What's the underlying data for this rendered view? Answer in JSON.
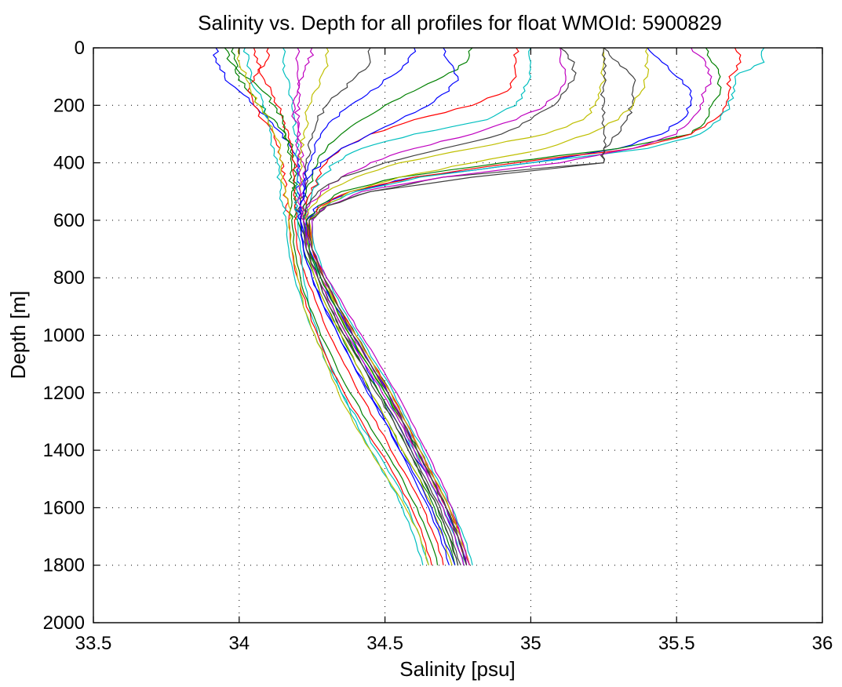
{
  "chart_data": {
    "type": "line",
    "title": "Salinity vs. Depth for all profiles for float WMOId: 5900829",
    "xlabel": "Salinity [psu]",
    "ylabel": "Depth [m]",
    "xlim": [
      33.5,
      36
    ],
    "ylim": [
      0,
      2000
    ],
    "y_reversed": true,
    "xticks": [
      "33.5",
      "34",
      "34.5",
      "35",
      "35.5",
      "36"
    ],
    "yticks": [
      "0",
      "200",
      "400",
      "600",
      "800",
      "1000",
      "1200",
      "1400",
      "1600",
      "1800",
      "2000"
    ],
    "grid": true,
    "legend": "none",
    "depth_levels": [
      0,
      50,
      100,
      150,
      200,
      250,
      300,
      350,
      400,
      450,
      500,
      550,
      600,
      700,
      800,
      900,
      1000,
      1100,
      1200,
      1300,
      1400,
      1500,
      1600,
      1700,
      1800
    ],
    "colors": [
      "#0000ff",
      "#008000",
      "#ff0000",
      "#00bfbf",
      "#bf00bf",
      "#bfbf00",
      "#404040"
    ],
    "series": [
      {
        "salinity": [
          33.92,
          33.92,
          33.95,
          34.0,
          34.05,
          34.1,
          34.15,
          34.18,
          34.2,
          34.2,
          34.2,
          34.2,
          34.21,
          34.24,
          34.28,
          34.33,
          34.38,
          34.43,
          34.48,
          34.54,
          34.59,
          34.65,
          34.7,
          34.74,
          34.77
        ]
      },
      {
        "salinity": [
          33.98,
          33.99,
          34.0,
          34.03,
          34.07,
          34.12,
          34.16,
          34.18,
          34.19,
          34.19,
          34.19,
          34.19,
          34.2,
          34.22,
          34.26,
          34.3,
          34.35,
          34.4,
          34.45,
          34.51,
          34.56,
          34.62,
          34.67,
          34.71,
          34.74
        ]
      },
      {
        "salinity": [
          34.05,
          34.06,
          34.08,
          34.11,
          34.13,
          34.15,
          34.17,
          34.18,
          34.19,
          34.19,
          34.19,
          34.19,
          34.19,
          34.2,
          34.23,
          34.27,
          34.31,
          34.36,
          34.41,
          34.47,
          34.52,
          34.58,
          34.63,
          34.67,
          34.7
        ]
      },
      {
        "salinity": [
          34.15,
          34.15,
          34.16,
          34.17,
          34.18,
          34.19,
          34.19,
          34.2,
          34.2,
          34.2,
          34.2,
          34.2,
          34.2,
          34.21,
          34.22,
          34.24,
          34.27,
          34.31,
          34.35,
          34.4,
          34.45,
          34.51,
          34.56,
          34.6,
          34.63
        ]
      },
      {
        "salinity": [
          34.2,
          34.2,
          34.2,
          34.2,
          34.2,
          34.2,
          34.21,
          34.21,
          34.22,
          34.22,
          34.22,
          34.22,
          34.22,
          34.24,
          34.28,
          34.33,
          34.39,
          34.45,
          34.51,
          34.57,
          34.62,
          34.67,
          34.71,
          34.75,
          34.78
        ]
      },
      {
        "salinity": [
          34.3,
          34.3,
          34.28,
          34.26,
          34.24,
          34.23,
          34.22,
          34.21,
          34.21,
          34.21,
          34.21,
          34.21,
          34.22,
          34.23,
          34.26,
          34.3,
          34.35,
          34.4,
          34.45,
          34.51,
          34.56,
          34.62,
          34.66,
          34.7,
          34.73
        ]
      },
      {
        "salinity": [
          34.45,
          34.45,
          34.4,
          34.35,
          34.3,
          34.27,
          34.25,
          34.24,
          34.23,
          34.23,
          34.22,
          34.21,
          34.21,
          34.23,
          34.27,
          34.31,
          34.36,
          34.42,
          34.48,
          34.54,
          34.59,
          34.64,
          34.69,
          34.73,
          34.76
        ]
      },
      {
        "salinity": [
          34.6,
          34.58,
          34.52,
          34.45,
          34.38,
          34.32,
          34.28,
          34.26,
          34.24,
          34.23,
          34.22,
          34.21,
          34.21,
          34.22,
          34.25,
          34.29,
          34.34,
          34.39,
          34.45,
          34.5,
          34.55,
          34.61,
          34.66,
          34.7,
          34.74
        ]
      },
      {
        "salinity": [
          34.8,
          34.78,
          34.7,
          34.6,
          34.5,
          34.42,
          34.35,
          34.3,
          34.27,
          34.25,
          34.23,
          34.22,
          34.22,
          34.24,
          34.27,
          34.32,
          34.37,
          34.42,
          34.48,
          34.53,
          34.58,
          34.63,
          34.68,
          34.72,
          34.75
        ]
      },
      {
        "salinity": [
          34.95,
          34.95,
          34.95,
          34.92,
          34.8,
          34.6,
          34.45,
          34.35,
          34.3,
          34.27,
          34.25,
          34.23,
          34.23,
          34.25,
          34.29,
          34.34,
          34.4,
          34.46,
          34.51,
          34.56,
          34.61,
          34.66,
          34.71,
          34.75,
          34.78
        ]
      },
      {
        "salinity": [
          35.0,
          35.0,
          35.0,
          34.98,
          34.95,
          34.85,
          34.6,
          34.42,
          34.33,
          34.28,
          34.25,
          34.23,
          34.22,
          34.24,
          34.28,
          34.33,
          34.38,
          34.44,
          34.5,
          34.55,
          34.6,
          34.65,
          34.7,
          34.74,
          34.77
        ]
      },
      {
        "salinity": [
          35.1,
          35.1,
          35.12,
          35.1,
          35.05,
          34.95,
          34.8,
          34.6,
          34.45,
          34.35,
          34.28,
          34.24,
          34.22,
          34.23,
          34.27,
          34.32,
          34.37,
          34.43,
          34.49,
          34.55,
          34.6,
          34.65,
          34.7,
          34.74,
          34.77
        ]
      },
      {
        "salinity": [
          35.25,
          35.25,
          35.25,
          35.24,
          35.22,
          35.18,
          35.05,
          34.8,
          34.55,
          34.4,
          34.3,
          34.25,
          34.23,
          34.24,
          34.28,
          34.33,
          34.38,
          34.44,
          34.5,
          34.56,
          34.61,
          34.66,
          34.71,
          34.75,
          34.78
        ]
      },
      {
        "salinity": [
          35.25,
          35.3,
          35.35,
          35.35,
          35.35,
          35.33,
          35.3,
          35.25,
          35.25,
          34.7,
          34.45,
          34.3,
          34.24,
          34.25,
          34.29,
          34.34,
          34.4,
          34.46,
          34.52,
          34.57,
          34.62,
          34.67,
          34.72,
          34.76,
          34.79
        ]
      },
      {
        "salinity": [
          35.4,
          35.45,
          35.5,
          35.55,
          35.55,
          35.52,
          35.45,
          35.3,
          35.0,
          34.6,
          34.38,
          34.27,
          34.23,
          34.24,
          34.28,
          34.33,
          34.39,
          34.45,
          34.51,
          34.56,
          34.61,
          34.66,
          34.71,
          34.75,
          34.78
        ]
      },
      {
        "salinity": [
          35.6,
          35.62,
          35.65,
          35.65,
          35.62,
          35.6,
          35.55,
          35.3,
          34.9,
          34.55,
          34.35,
          34.27,
          34.23,
          34.24,
          34.28,
          34.33,
          34.38,
          34.44,
          34.5,
          34.56,
          34.61,
          34.66,
          34.71,
          34.75,
          34.78
        ]
      },
      {
        "salinity": [
          35.7,
          35.72,
          35.68,
          35.68,
          35.67,
          35.63,
          35.55,
          35.35,
          34.95,
          34.6,
          34.38,
          34.28,
          34.24,
          34.25,
          34.29,
          34.34,
          34.4,
          34.46,
          34.52,
          34.57,
          34.62,
          34.67,
          34.72,
          34.76,
          34.79
        ]
      },
      {
        "salinity": [
          35.8,
          35.8,
          35.7,
          35.7,
          35.68,
          35.65,
          35.58,
          35.4,
          35.0,
          34.62,
          34.4,
          34.3,
          34.25,
          34.26,
          34.3,
          34.35,
          34.41,
          34.47,
          34.53,
          34.58,
          34.63,
          34.68,
          34.73,
          34.77,
          34.8
        ]
      },
      {
        "salinity": [
          35.55,
          35.6,
          35.62,
          35.6,
          35.58,
          35.55,
          35.5,
          35.35,
          35.1,
          34.7,
          34.42,
          34.3,
          34.25,
          34.25,
          34.29,
          34.34,
          34.39,
          34.45,
          34.51,
          34.56,
          34.61,
          34.66,
          34.71,
          34.75,
          34.78
        ]
      },
      {
        "salinity": [
          35.4,
          35.4,
          35.4,
          35.38,
          35.35,
          35.3,
          35.2,
          35.05,
          34.8,
          34.55,
          34.38,
          34.29,
          34.24,
          34.25,
          34.29,
          34.34,
          34.4,
          34.46,
          34.52,
          34.57,
          34.62,
          34.67,
          34.72,
          34.76,
          34.79
        ]
      },
      {
        "salinity": [
          35.1,
          35.15,
          35.15,
          35.12,
          35.08,
          35.0,
          34.9,
          34.7,
          34.5,
          34.35,
          34.27,
          34.23,
          34.22,
          34.23,
          34.27,
          34.31,
          34.36,
          34.42,
          34.47,
          34.53,
          34.58,
          34.63,
          34.68,
          34.72,
          34.75
        ]
      },
      {
        "salinity": [
          34.7,
          34.72,
          34.75,
          34.72,
          34.65,
          34.55,
          34.45,
          34.35,
          34.28,
          34.24,
          34.22,
          34.21,
          34.21,
          34.22,
          34.25,
          34.29,
          34.34,
          34.39,
          34.44,
          34.5,
          34.55,
          34.6,
          34.65,
          34.69,
          34.72
        ]
      },
      {
        "salinity": [
          33.95,
          33.97,
          34.02,
          34.08,
          34.12,
          34.15,
          34.16,
          34.17,
          34.18,
          34.18,
          34.18,
          34.18,
          34.18,
          34.19,
          34.21,
          34.24,
          34.28,
          34.33,
          34.38,
          34.44,
          34.5,
          34.56,
          34.61,
          34.65,
          34.68
        ]
      },
      {
        "salinity": [
          34.1,
          34.09,
          34.05,
          34.03,
          34.05,
          34.08,
          34.12,
          34.14,
          34.15,
          34.15,
          34.16,
          34.16,
          34.17,
          34.18,
          34.2,
          34.23,
          34.27,
          34.31,
          34.36,
          34.42,
          34.48,
          34.54,
          34.59,
          34.63,
          34.66
        ]
      },
      {
        "salinity": [
          34.02,
          34.03,
          34.04,
          34.06,
          34.08,
          34.1,
          34.11,
          34.12,
          34.13,
          34.13,
          34.14,
          34.15,
          34.16,
          34.17,
          34.19,
          34.22,
          34.26,
          34.3,
          34.35,
          34.41,
          34.47,
          34.53,
          34.58,
          34.62,
          34.65
        ]
      },
      {
        "salinity": [
          34.25,
          34.24,
          34.22,
          34.2,
          34.19,
          34.19,
          34.2,
          34.2,
          34.2,
          34.21,
          34.21,
          34.21,
          34.22,
          34.25,
          34.3,
          34.36,
          34.42,
          34.48,
          34.54,
          34.59,
          34.64,
          34.69,
          34.73,
          34.76,
          34.79
        ]
      },
      {
        "salinity": [
          34.0,
          34.0,
          34.02,
          34.04,
          34.07,
          34.1,
          34.12,
          34.14,
          34.15,
          34.15,
          34.16,
          34.17,
          34.17,
          34.18,
          34.2,
          34.22,
          34.26,
          34.3,
          34.34,
          34.39,
          34.45,
          34.51,
          34.57,
          34.62,
          34.65
        ]
      },
      {
        "salinity": [
          35.25,
          35.25,
          35.25,
          35.25,
          35.25,
          35.25,
          35.25,
          35.25,
          35.25,
          34.8,
          34.45,
          34.3,
          34.24,
          34.25,
          34.29,
          34.34,
          34.39,
          34.45,
          34.51,
          34.56,
          34.61,
          34.66,
          34.71,
          34.75,
          34.78
        ]
      }
    ]
  }
}
